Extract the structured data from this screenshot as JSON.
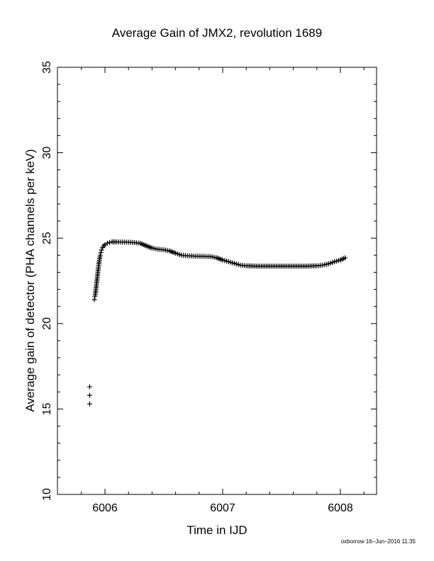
{
  "chart_data": {
    "type": "scatter",
    "title": "Average Gain of JMX2, revolution 1689",
    "xlabel": "Time in IJD",
    "ylabel": "Average gain of detector (PHA channels per keV)",
    "xlim": [
      5905.6,
      6008.3
    ],
    "ylim": [
      10,
      35
    ],
    "xticks": [
      6006,
      6007,
      6008
    ],
    "yticks": [
      10,
      15,
      20,
      25,
      30,
      35
    ],
    "marker": "plus",
    "grid": false,
    "points": [
      [
        6005.87,
        15.3
      ],
      [
        6005.87,
        15.8
      ],
      [
        6005.87,
        16.3
      ],
      [
        6005.91,
        21.4
      ],
      [
        6005.915,
        21.6
      ],
      [
        6005.92,
        21.8
      ],
      [
        6005.925,
        22.1
      ],
      [
        6005.93,
        22.4
      ],
      [
        6005.935,
        22.7
      ],
      [
        6005.94,
        23.0
      ],
      [
        6005.945,
        23.3
      ],
      [
        6005.95,
        23.6
      ],
      [
        6005.955,
        23.8
      ],
      [
        6005.96,
        24.0
      ],
      [
        6005.965,
        24.15
      ],
      [
        6005.97,
        24.3
      ],
      [
        6005.98,
        24.45
      ],
      [
        6005.99,
        24.55
      ],
      [
        6006.0,
        24.62
      ],
      [
        6006.02,
        24.7
      ],
      [
        6006.04,
        24.75
      ],
      [
        6006.06,
        24.78
      ],
      [
        6006.1,
        24.78
      ],
      [
        6006.15,
        24.77
      ],
      [
        6006.2,
        24.76
      ],
      [
        6006.25,
        24.74
      ],
      [
        6006.3,
        24.7
      ],
      [
        6006.35,
        24.55
      ],
      [
        6006.4,
        24.42
      ],
      [
        6006.45,
        24.35
      ],
      [
        6006.5,
        24.32
      ],
      [
        6006.55,
        24.25
      ],
      [
        6006.6,
        24.12
      ],
      [
        6006.65,
        24.0
      ],
      [
        6006.7,
        23.97
      ],
      [
        6006.75,
        23.95
      ],
      [
        6006.8,
        23.94
      ],
      [
        6006.85,
        23.93
      ],
      [
        6006.9,
        23.92
      ],
      [
        6006.95,
        23.85
      ],
      [
        6007.0,
        23.72
      ],
      [
        6007.05,
        23.62
      ],
      [
        6007.1,
        23.52
      ],
      [
        6007.15,
        23.42
      ],
      [
        6007.2,
        23.38
      ],
      [
        6007.3,
        23.36
      ],
      [
        6007.4,
        23.36
      ],
      [
        6007.5,
        23.36
      ],
      [
        6007.6,
        23.36
      ],
      [
        6007.7,
        23.36
      ],
      [
        6007.8,
        23.38
      ],
      [
        6007.85,
        23.42
      ],
      [
        6007.9,
        23.5
      ],
      [
        6007.95,
        23.62
      ],
      [
        6008.0,
        23.72
      ],
      [
        6008.04,
        23.85
      ]
    ]
  },
  "footer": {
    "stamp": "oxborrow 16–Jun–2016 11:35"
  }
}
